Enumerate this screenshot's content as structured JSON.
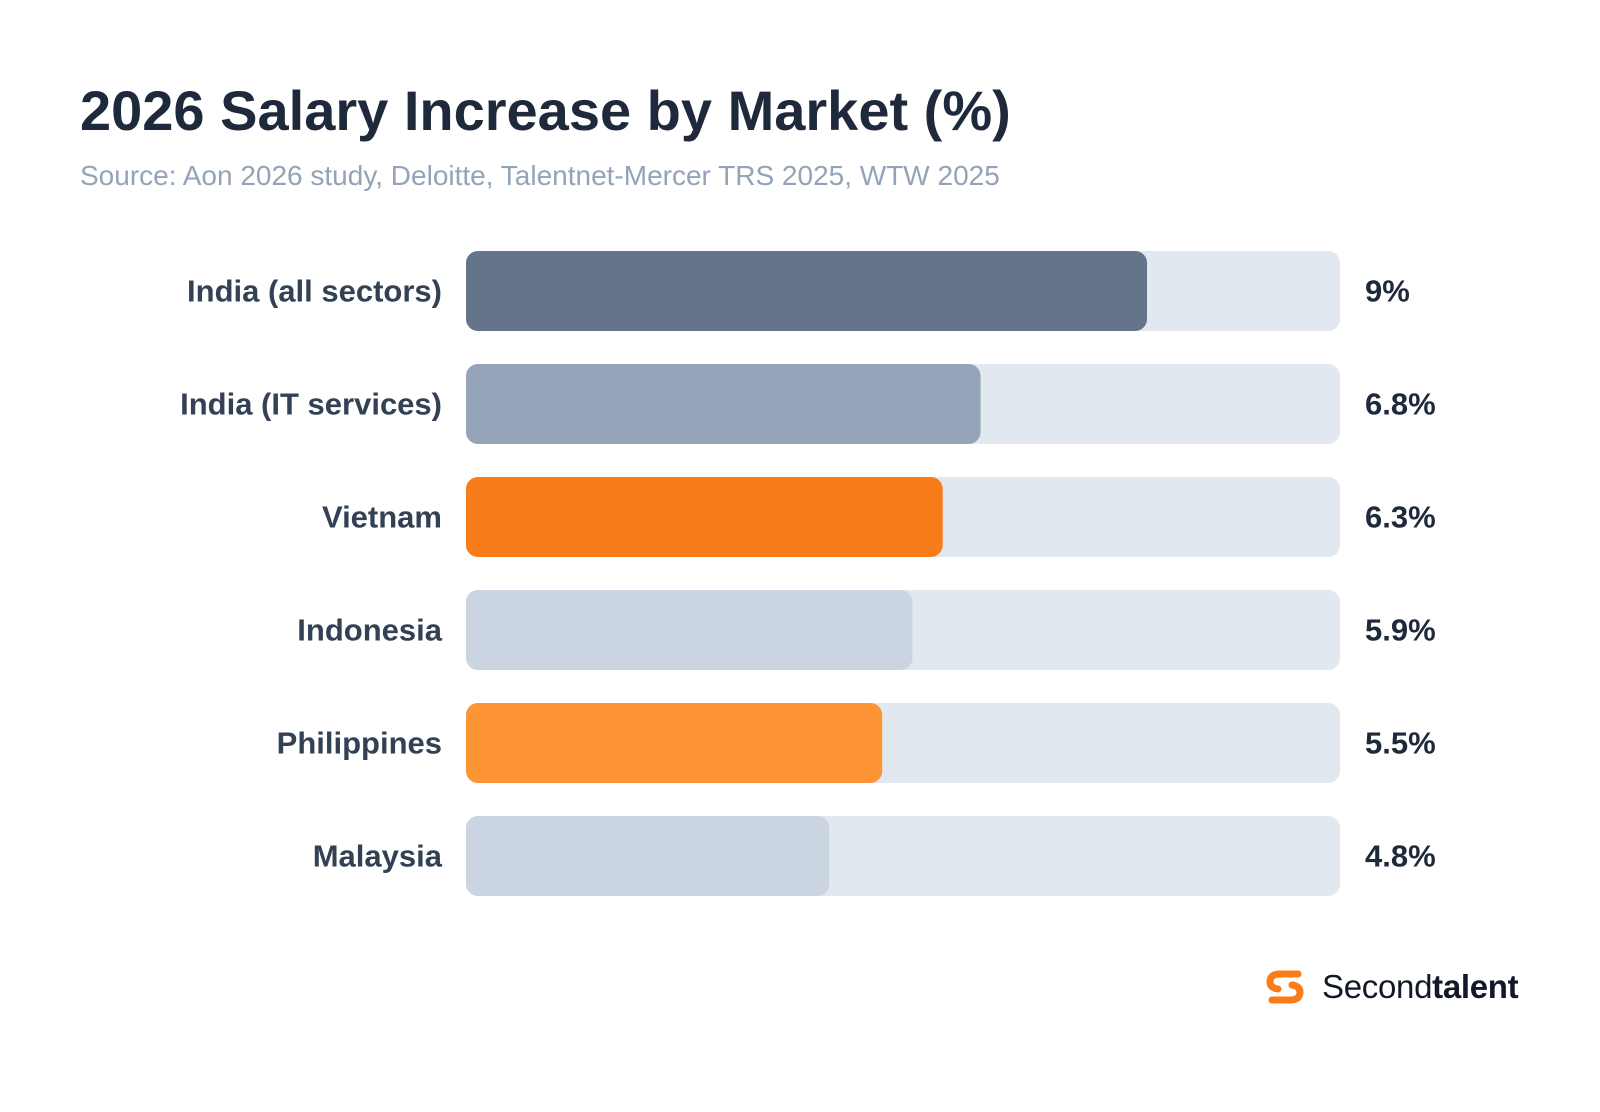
{
  "chart_data": {
    "type": "bar",
    "orientation": "horizontal",
    "title": "2026 Salary Increase by Market (%)",
    "subtitle": "Source: Aon 2026 study, Deloitte, Talentnet-Mercer TRS 2025, WTW 2025",
    "categories": [
      "India (all sectors)",
      "India (IT services)",
      "Vietnam",
      "Indonesia",
      "Philippines",
      "Malaysia"
    ],
    "values": [
      9,
      6.8,
      6.3,
      5.9,
      5.5,
      4.8
    ],
    "value_labels": [
      "9%",
      "6.8%",
      "6.3%",
      "5.9%",
      "5.5%",
      "4.8%"
    ],
    "xlim": [
      0,
      11.55
    ],
    "grid": false,
    "legend": "none",
    "colors": {
      "track": "#e2e8f0",
      "bars": [
        "#64748b",
        "#94a3b8",
        "#f97c1b",
        "#cbd5e1",
        "#fd9535",
        "#cbd5e1"
      ]
    }
  },
  "brand": {
    "name_light": "Second",
    "name_bold": "talent",
    "icon": "secondtalent-logo-icon",
    "color": "#f97c1b"
  }
}
